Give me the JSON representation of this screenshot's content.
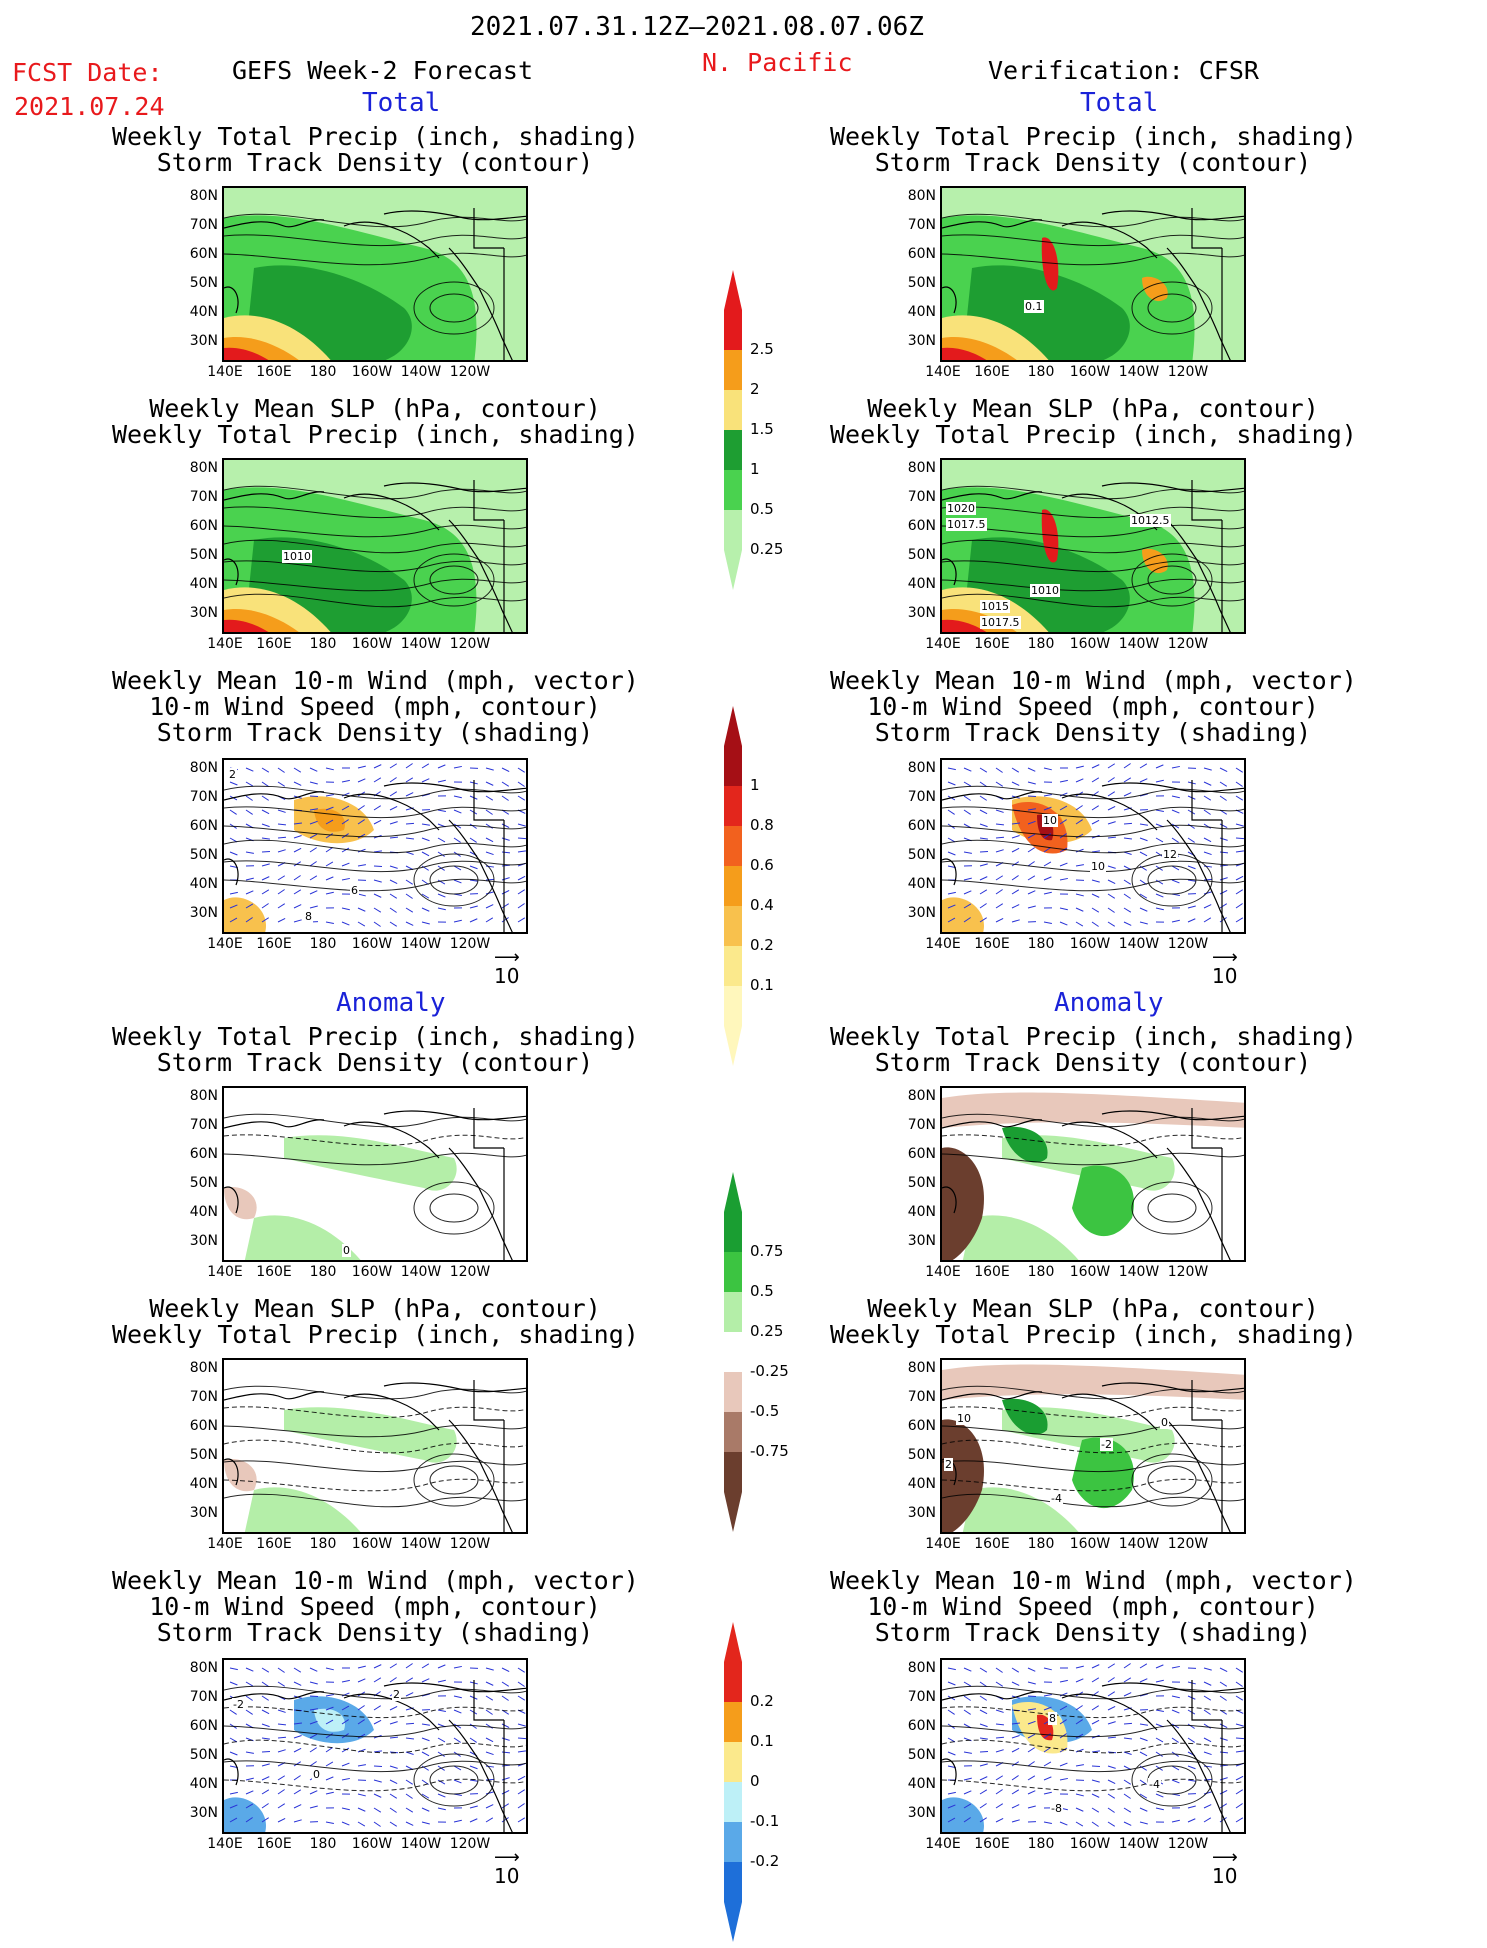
{
  "header": {
    "date_range": "2021.07.31.12Z–2021.08.07.06Z",
    "fcst_label": "FCST Date:",
    "fcst_date": "2021.07.24",
    "forecast_title": "GEFS Week-2 Forecast",
    "region": "N. Pacific",
    "verification": "Verification: CFSR"
  },
  "sections": {
    "total": "Total",
    "anomaly": "Anomaly"
  },
  "panel_titles": {
    "precip_track": [
      "Weekly Total Precip (inch, shading)",
      "Storm Track Density (contour)"
    ],
    "slp_precip": [
      "Weekly Mean SLP (hPa, contour)",
      "Weekly Total Precip (inch, shading)"
    ],
    "wind_track": [
      "Weekly Mean 10-m Wind (mph, vector)",
      "10-m Wind Speed (mph, contour)",
      "Storm Track Density (shading)"
    ]
  },
  "axes": {
    "lat": [
      "80N",
      "70N",
      "60N",
      "50N",
      "40N",
      "30N"
    ],
    "lon": [
      "140E",
      "160E",
      "180",
      "160W",
      "140W",
      "120W"
    ]
  },
  "vector_ref": "10",
  "colorbars": {
    "precip_total": {
      "labels": [
        "2.5",
        "2",
        "1.5",
        "1",
        "0.5",
        "0.25"
      ],
      "colors": [
        "#e31a1c",
        "#f59d1b",
        "#f9e27a",
        "#1e9e32",
        "#4ad24f",
        "#b7f0ac"
      ]
    },
    "track_total": {
      "labels": [
        "1",
        "0.8",
        "0.6",
        "0.4",
        "0.2",
        "0.1"
      ],
      "colors": [
        "#a50f15",
        "#e3261c",
        "#f2611e",
        "#f59d1b",
        "#f8c14d",
        "#fbe98c",
        "#fff7bc"
      ]
    },
    "precip_anom": {
      "labels": [
        "0.75",
        "0.5",
        "0.25",
        "-0.25",
        "-0.5",
        "-0.75"
      ],
      "colors": [
        "#1a9e32",
        "#3cc441",
        "#b4eea8",
        "#ffffff",
        "#e8c8bb",
        "#a97a68",
        "#6b3e2e"
      ]
    },
    "track_anom": {
      "labels": [
        "0.2",
        "0.1",
        "0",
        "-0.1",
        "-0.2"
      ],
      "colors": [
        "#e3261c",
        "#f59d1b",
        "#fbe98c",
        "#bdf0f7",
        "#5aa9e8",
        "#1e6fd9"
      ]
    }
  },
  "contour_labels": {
    "r_slp_total": [
      "1020",
      "1017.5",
      "1012.5",
      "1010",
      "1015",
      "1017.5"
    ],
    "l_slp_total": [
      "1010"
    ],
    "r_track_total": [
      "0.1"
    ],
    "l_wind_total": [
      "2",
      "6",
      "8"
    ],
    "r_wind_total": [
      "10",
      "10",
      "12"
    ],
    "l_precip_anom": [
      "0"
    ],
    "r_slp_anom": [
      "10",
      "2",
      "-2",
      "-4",
      "0"
    ],
    "l_wind_anom": [
      "2",
      "-2",
      "0"
    ],
    "r_wind_anom": [
      "8",
      "-8",
      "-4"
    ]
  }
}
